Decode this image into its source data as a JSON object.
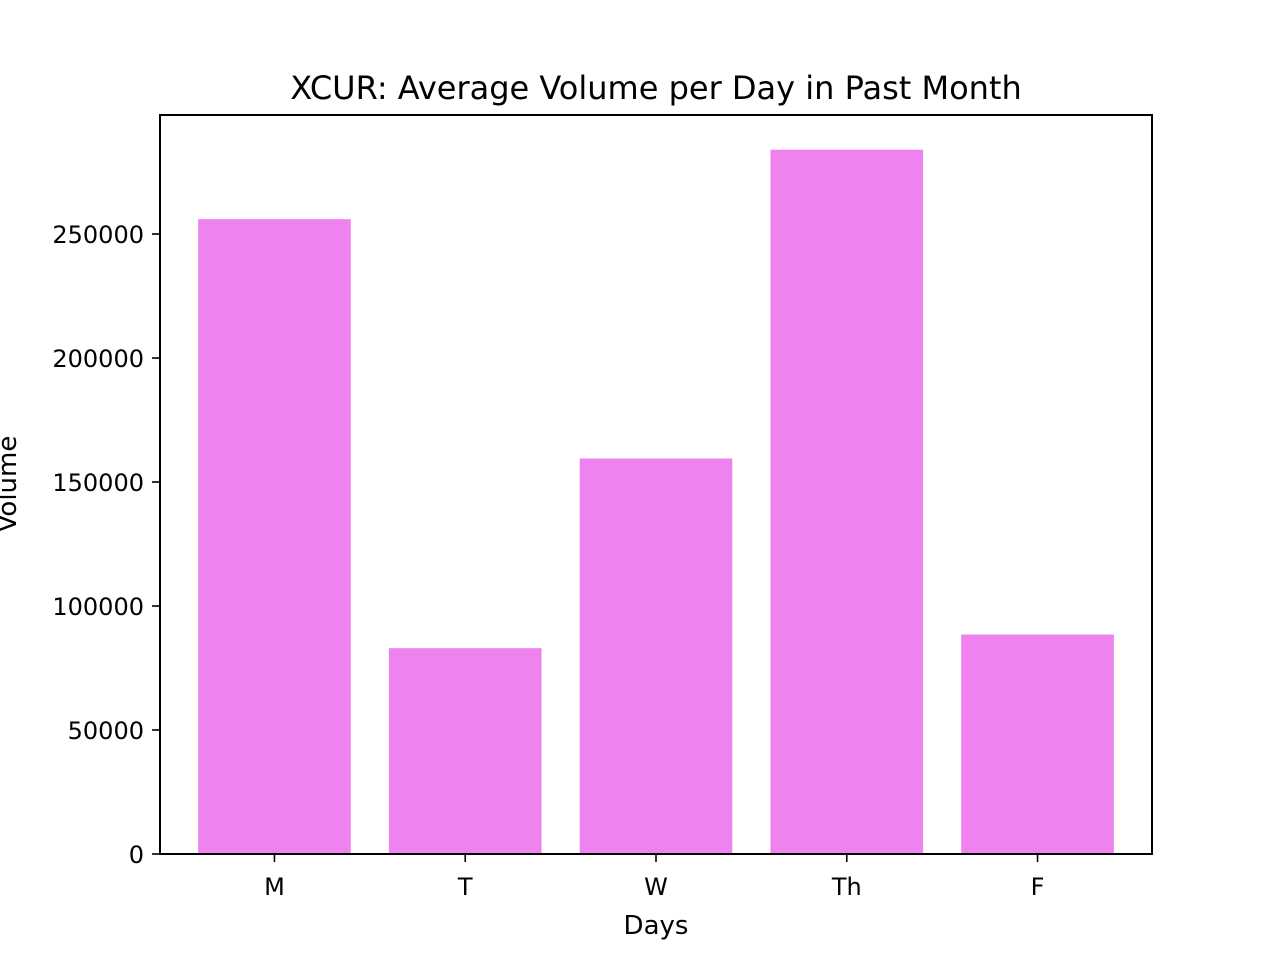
{
  "chart_data": {
    "type": "bar",
    "title": "XCUR: Average Volume per Day in Past Month",
    "xlabel": "Days",
    "ylabel": "Volume",
    "categories": [
      "M",
      "T",
      "W",
      "Th",
      "F"
    ],
    "values": [
      256000,
      83000,
      159500,
      284000,
      88500
    ],
    "ylim": [
      0,
      298000
    ],
    "yticks": [
      0,
      50000,
      100000,
      150000,
      200000,
      250000
    ],
    "ytick_labels": [
      "0",
      "50000",
      "100000",
      "150000",
      "200000",
      "250000"
    ],
    "bar_color": "#ee82ee",
    "grid": false,
    "legend": "none"
  }
}
